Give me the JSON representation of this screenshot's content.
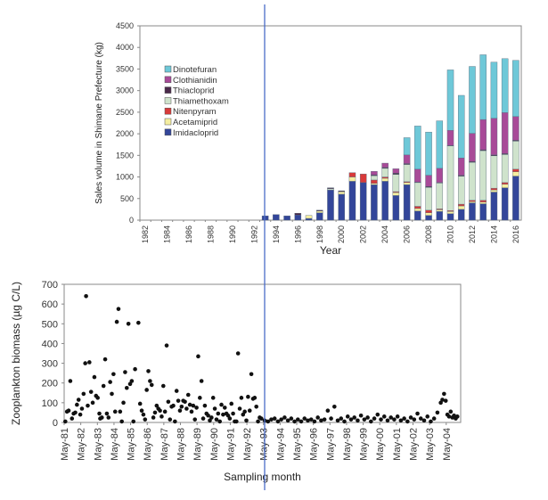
{
  "chart_data": [
    {
      "type": "bar",
      "stacked": true,
      "title": "",
      "xlabel": "Year",
      "ylabel": "Sales volume in Shimane Prefecture (kg)",
      "ylim": [
        0,
        4500
      ],
      "yticks": [
        0,
        500,
        1000,
        1500,
        2000,
        2500,
        3000,
        3500,
        4000,
        4500
      ],
      "legend_position": "top-left",
      "grid": false,
      "categories": [
        "1982",
        "1983",
        "1984",
        "1985",
        "1986",
        "1987",
        "1988",
        "1989",
        "1990",
        "1991",
        "1992",
        "1993",
        "1994",
        "1995",
        "1996",
        "1997",
        "1998",
        "1999",
        "2000",
        "2001",
        "2002",
        "2003",
        "2004",
        "2005",
        "2006",
        "2007",
        "2008",
        "2009",
        "2010",
        "2011",
        "2012",
        "2013",
        "2014",
        "2015",
        "2016"
      ],
      "xtick_labels": [
        "1982",
        "1984",
        "1986",
        "1988",
        "1990",
        "1992",
        "1994",
        "1996",
        "1998",
        "2000",
        "2002",
        "2004",
        "2006",
        "2008",
        "2010",
        "2012",
        "2014",
        "2016"
      ],
      "series": [
        {
          "name": "Imidacloprid",
          "color": "#33469a",
          "values": [
            0,
            0,
            0,
            0,
            0,
            0,
            0,
            0,
            0,
            0,
            0,
            100,
            130,
            100,
            120,
            40,
            170,
            700,
            600,
            900,
            870,
            820,
            900,
            570,
            820,
            210,
            110,
            200,
            150,
            250,
            400,
            380,
            650,
            750,
            1020
          ]
        },
        {
          "name": "Acetamiprid",
          "color": "#f5eea0",
          "values": [
            0,
            0,
            0,
            0,
            0,
            0,
            0,
            0,
            0,
            0,
            0,
            0,
            0,
            0,
            0,
            70,
            40,
            0,
            60,
            100,
            0,
            30,
            70,
            70,
            50,
            60,
            60,
            40,
            50,
            80,
            30,
            40,
            50,
            80,
            100
          ]
        },
        {
          "name": "Nitenpyram",
          "color": "#d83a3a",
          "values": [
            0,
            0,
            0,
            0,
            0,
            0,
            0,
            0,
            0,
            0,
            0,
            0,
            0,
            0,
            0,
            0,
            0,
            0,
            0,
            100,
            200,
            80,
            30,
            20,
            20,
            50,
            60,
            20,
            20,
            40,
            30,
            40,
            40,
            40,
            60
          ]
        },
        {
          "name": "Thiamethoxam",
          "color": "#cfe3cc",
          "values": [
            0,
            0,
            0,
            0,
            0,
            0,
            0,
            0,
            0,
            0,
            0,
            0,
            0,
            0,
            0,
            0,
            0,
            30,
            0,
            0,
            0,
            100,
            200,
            400,
            400,
            550,
            530,
            600,
            1500,
            650,
            880,
            1150,
            750,
            650,
            650
          ]
        },
        {
          "name": "Thiacloprid",
          "color": "#4a2a4a",
          "values": [
            0,
            0,
            0,
            0,
            0,
            0,
            0,
            0,
            0,
            0,
            0,
            0,
            0,
            0,
            40,
            0,
            20,
            20,
            20,
            0,
            0,
            20,
            20,
            30,
            20,
            10,
            20,
            10,
            10,
            20,
            20,
            20,
            20,
            20,
            20
          ]
        },
        {
          "name": "Clothianidin",
          "color": "#a84a98",
          "values": [
            0,
            0,
            0,
            0,
            0,
            0,
            0,
            0,
            0,
            0,
            0,
            0,
            0,
            0,
            0,
            0,
            0,
            0,
            0,
            0,
            0,
            80,
            100,
            100,
            200,
            300,
            260,
            330,
            350,
            400,
            650,
            700,
            850,
            950,
            550
          ]
        },
        {
          "name": "Dinotefuran",
          "color": "#6ec8d8",
          "values": [
            0,
            0,
            0,
            0,
            0,
            0,
            0,
            0,
            0,
            0,
            0,
            0,
            0,
            0,
            0,
            0,
            0,
            0,
            0,
            0,
            0,
            0,
            0,
            0,
            400,
            1000,
            1000,
            1100,
            1400,
            1450,
            1550,
            1500,
            1300,
            1250,
            1300
          ]
        }
      ]
    },
    {
      "type": "scatter",
      "title": "",
      "xlabel": "Sampling month",
      "ylabel": "Zooplankton biomass (µg C/L)",
      "ylim": [
        0,
        700
      ],
      "yticks": [
        0,
        100,
        200,
        300,
        400,
        500,
        600,
        700
      ],
      "xlim": [
        1981.33,
        2005.2
      ],
      "xtick_labels": [
        "May-81",
        "May-82",
        "May-83",
        "May-84",
        "May-85",
        "May-86",
        "May-87",
        "May-88",
        "May-89",
        "May-90",
        "May-91",
        "May-92",
        "May-93",
        "May-94",
        "May-95",
        "May-96",
        "May-97",
        "May-98",
        "May-99",
        "May-00",
        "May-01",
        "May-02",
        "May-03",
        "May-04"
      ],
      "grid": false,
      "points": [
        [
          1981.4,
          5
        ],
        [
          1981.5,
          55
        ],
        [
          1981.6,
          60
        ],
        [
          1981.7,
          210
        ],
        [
          1981.8,
          20
        ],
        [
          1981.9,
          45
        ],
        [
          1982.0,
          50
        ],
        [
          1982.1,
          90
        ],
        [
          1982.2,
          115
        ],
        [
          1982.3,
          40
        ],
        [
          1982.4,
          70
        ],
        [
          1982.5,
          145
        ],
        [
          1982.6,
          300
        ],
        [
          1982.65,
          640
        ],
        [
          1982.75,
          85
        ],
        [
          1982.85,
          305
        ],
        [
          1982.95,
          155
        ],
        [
          1983.05,
          100
        ],
        [
          1983.15,
          230
        ],
        [
          1983.25,
          135
        ],
        [
          1983.35,
          125
        ],
        [
          1983.45,
          45
        ],
        [
          1983.5,
          20
        ],
        [
          1983.6,
          25
        ],
        [
          1983.7,
          185
        ],
        [
          1983.8,
          320
        ],
        [
          1983.9,
          45
        ],
        [
          1984.0,
          25
        ],
        [
          1984.1,
          205
        ],
        [
          1984.2,
          145
        ],
        [
          1984.3,
          245
        ],
        [
          1984.4,
          55
        ],
        [
          1984.5,
          510
        ],
        [
          1984.6,
          575
        ],
        [
          1984.7,
          55
        ],
        [
          1984.8,
          5
        ],
        [
          1984.9,
          100
        ],
        [
          1985.0,
          255
        ],
        [
          1985.1,
          175
        ],
        [
          1985.2,
          500
        ],
        [
          1985.3,
          195
        ],
        [
          1985.4,
          210
        ],
        [
          1985.5,
          5
        ],
        [
          1985.6,
          270
        ],
        [
          1985.8,
          505
        ],
        [
          1985.9,
          95
        ],
        [
          1986.0,
          60
        ],
        [
          1986.1,
          40
        ],
        [
          1986.2,
          15
        ],
        [
          1986.3,
          165
        ],
        [
          1986.4,
          260
        ],
        [
          1986.5,
          210
        ],
        [
          1986.6,
          190
        ],
        [
          1986.7,
          25
        ],
        [
          1986.8,
          50
        ],
        [
          1986.9,
          85
        ],
        [
          1987.0,
          70
        ],
        [
          1987.1,
          60
        ],
        [
          1987.2,
          30
        ],
        [
          1987.3,
          185
        ],
        [
          1987.4,
          55
        ],
        [
          1987.5,
          390
        ],
        [
          1987.6,
          105
        ],
        [
          1987.7,
          15
        ],
        [
          1987.8,
          80
        ],
        [
          1987.9,
          85
        ],
        [
          1988.0,
          5
        ],
        [
          1988.1,
          160
        ],
        [
          1988.2,
          110
        ],
        [
          1988.3,
          60
        ],
        [
          1988.4,
          80
        ],
        [
          1988.5,
          110
        ],
        [
          1988.6,
          105
        ],
        [
          1988.7,
          70
        ],
        [
          1988.8,
          140
        ],
        [
          1988.9,
          90
        ],
        [
          1989.0,
          55
        ],
        [
          1989.1,
          85
        ],
        [
          1989.2,
          15
        ],
        [
          1989.3,
          75
        ],
        [
          1989.4,
          335
        ],
        [
          1989.5,
          125
        ],
        [
          1989.6,
          210
        ],
        [
          1989.7,
          20
        ],
        [
          1989.8,
          85
        ],
        [
          1989.9,
          45
        ],
        [
          1990.0,
          35
        ],
        [
          1990.1,
          10
        ],
        [
          1990.2,
          25
        ],
        [
          1990.3,
          125
        ],
        [
          1990.4,
          70
        ],
        [
          1990.5,
          15
        ],
        [
          1990.6,
          45
        ],
        [
          1990.7,
          5
        ],
        [
          1990.8,
          90
        ],
        [
          1990.9,
          40
        ],
        [
          1991.0,
          75
        ],
        [
          1991.1,
          45
        ],
        [
          1991.2,
          35
        ],
        [
          1991.3,
          20
        ],
        [
          1991.4,
          95
        ],
        [
          1991.5,
          45
        ],
        [
          1991.6,
          5
        ],
        [
          1991.7,
          5
        ],
        [
          1991.8,
          350
        ],
        [
          1991.9,
          70
        ],
        [
          1992.0,
          125
        ],
        [
          1992.1,
          40
        ],
        [
          1992.2,
          55
        ],
        [
          1992.3,
          10
        ],
        [
          1992.4,
          130
        ],
        [
          1992.5,
          60
        ],
        [
          1992.6,
          245
        ],
        [
          1992.7,
          120
        ],
        [
          1992.8,
          125
        ],
        [
          1992.9,
          80
        ],
        [
          1993.0,
          5
        ],
        [
          1993.1,
          25
        ],
        [
          1993.2,
          20
        ],
        [
          1993.4,
          10
        ],
        [
          1993.6,
          5
        ],
        [
          1993.8,
          15
        ],
        [
          1994.0,
          20
        ],
        [
          1994.2,
          5
        ],
        [
          1994.4,
          15
        ],
        [
          1994.6,
          25
        ],
        [
          1994.8,
          10
        ],
        [
          1995.0,
          20
        ],
        [
          1995.2,
          5
        ],
        [
          1995.4,
          15
        ],
        [
          1995.6,
          5
        ],
        [
          1995.8,
          20
        ],
        [
          1996.0,
          10
        ],
        [
          1996.2,
          15
        ],
        [
          1996.4,
          5
        ],
        [
          1996.6,
          25
        ],
        [
          1996.8,
          10
        ],
        [
          1997.0,
          15
        ],
        [
          1997.2,
          60
        ],
        [
          1997.4,
          20
        ],
        [
          1997.6,
          80
        ],
        [
          1997.8,
          10
        ],
        [
          1998.0,
          20
        ],
        [
          1998.2,
          5
        ],
        [
          1998.4,
          30
        ],
        [
          1998.6,
          15
        ],
        [
          1998.8,
          25
        ],
        [
          1999.0,
          10
        ],
        [
          1999.2,
          35
        ],
        [
          1999.4,
          15
        ],
        [
          1999.6,
          25
        ],
        [
          1999.8,
          5
        ],
        [
          2000.0,
          20
        ],
        [
          2000.2,
          40
        ],
        [
          2000.4,
          15
        ],
        [
          2000.6,
          30
        ],
        [
          2000.8,
          10
        ],
        [
          2001.0,
          25
        ],
        [
          2001.2,
          15
        ],
        [
          2001.4,
          30
        ],
        [
          2001.6,
          10
        ],
        [
          2001.8,
          20
        ],
        [
          2002.0,
          5
        ],
        [
          2002.2,
          25
        ],
        [
          2002.4,
          15
        ],
        [
          2002.6,
          45
        ],
        [
          2002.8,
          20
        ],
        [
          2003.0,
          10
        ],
        [
          2003.2,
          30
        ],
        [
          2003.4,
          5
        ],
        [
          2003.6,
          20
        ],
        [
          2003.8,
          50
        ],
        [
          2004.0,
          100
        ],
        [
          2004.1,
          115
        ],
        [
          2004.2,
          145
        ],
        [
          2004.3,
          110
        ],
        [
          2004.4,
          40
        ],
        [
          2004.5,
          30
        ],
        [
          2004.6,
          55
        ],
        [
          2004.7,
          25
        ],
        [
          2004.8,
          35
        ],
        [
          2004.9,
          20
        ],
        [
          2005.0,
          30
        ]
      ]
    }
  ],
  "annotations": {
    "divider_line_color": "#4a6cc8"
  }
}
